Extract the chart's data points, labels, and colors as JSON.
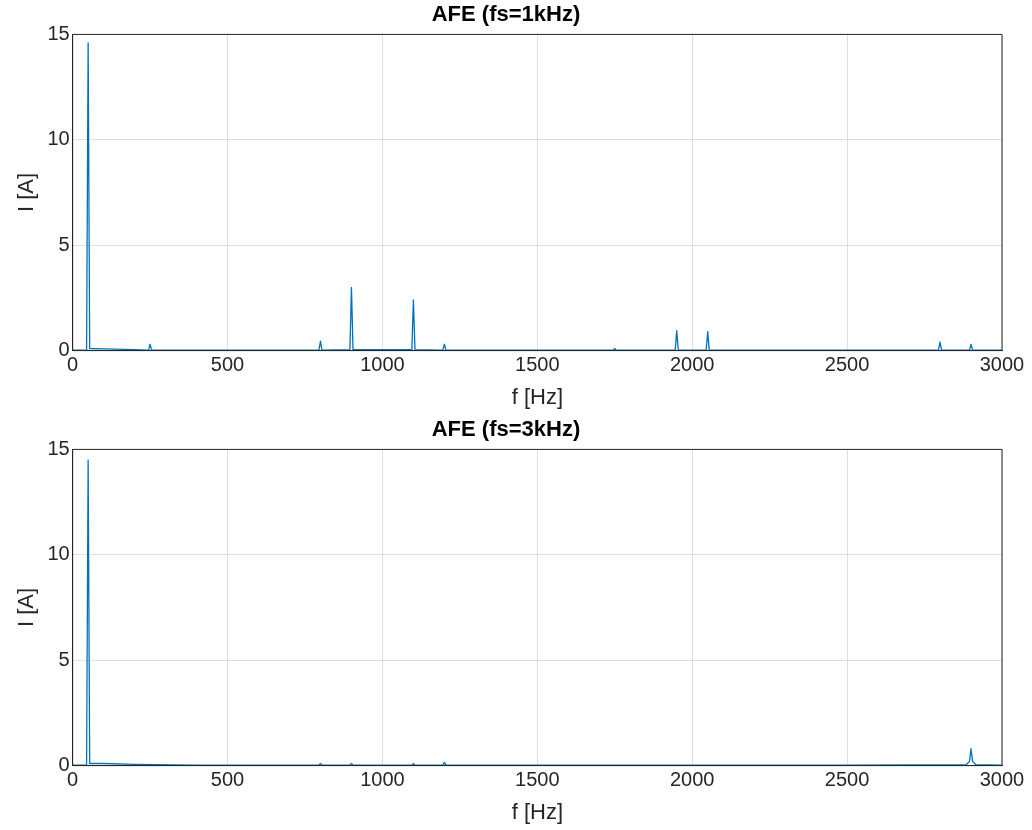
{
  "chart_data": [
    {
      "type": "line",
      "title": "AFE (fs=1kHz)",
      "xlabel": "f [Hz]",
      "ylabel": "I [A]",
      "xlim": [
        0,
        3000
      ],
      "ylim": [
        0,
        15
      ],
      "xticks": [
        0,
        500,
        1000,
        1500,
        2000,
        2500,
        3000
      ],
      "yticks": [
        0,
        5,
        10,
        15
      ],
      "grid": true,
      "marker": "none",
      "line_style": "solid",
      "series": [
        {
          "color": "#0072bd",
          "x": [
            0,
            45,
            50,
            55,
            100,
            200,
            245,
            250,
            255,
            300,
            500,
            795,
            800,
            805,
            895,
            900,
            905,
            1095,
            1100,
            1105,
            1195,
            1200,
            1205,
            1500,
            1745,
            1750,
            1755,
            1945,
            1950,
            1955,
            2045,
            2050,
            2055,
            2500,
            2795,
            2800,
            2805,
            2895,
            2900,
            2905,
            3000
          ],
          "values": [
            0.02,
            0.02,
            14.6,
            0.1,
            0.08,
            0.05,
            0.02,
            0.3,
            0.02,
            0.02,
            0.02,
            0.02,
            0.45,
            0.02,
            0.05,
            3.0,
            0.05,
            0.05,
            2.4,
            0.05,
            0.02,
            0.3,
            0.02,
            0.02,
            0.02,
            0.1,
            0.02,
            0.02,
            0.95,
            0.02,
            0.02,
            0.9,
            0.02,
            0.02,
            0.02,
            0.4,
            0.02,
            0.02,
            0.3,
            0.02,
            0.02
          ]
        }
      ]
    },
    {
      "type": "line",
      "title": "AFE (fs=3kHz)",
      "xlabel": "f [Hz]",
      "ylabel": "I [A]",
      "xlim": [
        0,
        3000
      ],
      "ylim": [
        0,
        15
      ],
      "xticks": [
        0,
        500,
        1000,
        1500,
        2000,
        2500,
        3000
      ],
      "yticks": [
        0,
        5,
        10,
        15
      ],
      "grid": true,
      "marker": "none",
      "line_style": "solid",
      "series": [
        {
          "color": "#0072bd",
          "x": [
            0,
            45,
            50,
            55,
            100,
            200,
            400,
            795,
            800,
            805,
            895,
            900,
            905,
            1095,
            1100,
            1105,
            1195,
            1200,
            1205,
            2500,
            2885,
            2895,
            2900,
            2905,
            2915,
            3000
          ],
          "values": [
            0.02,
            0.02,
            14.5,
            0.1,
            0.1,
            0.06,
            0.02,
            0.02,
            0.1,
            0.02,
            0.02,
            0.1,
            0.02,
            0.02,
            0.1,
            0.02,
            0.02,
            0.15,
            0.02,
            0.02,
            0.05,
            0.2,
            0.8,
            0.2,
            0.05,
            0.02
          ]
        }
      ]
    }
  ]
}
